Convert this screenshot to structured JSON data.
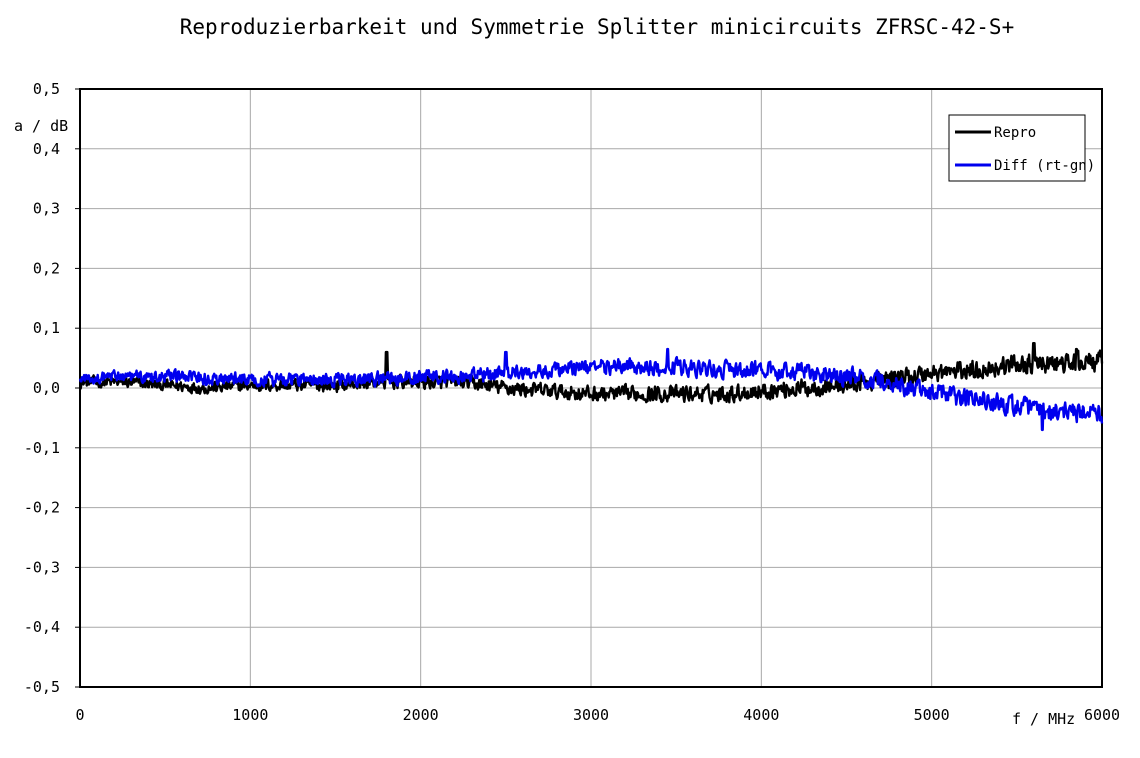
{
  "chart_data": {
    "type": "line",
    "title": "Reproduzierbarkeit und Symmetrie Splitter minicircuits ZFRSC-42-S+",
    "xlabel": "f / MHz",
    "ylabel": "a / dB",
    "xlim": [
      0,
      6000
    ],
    "ylim": [
      -0.5,
      0.5
    ],
    "x_ticks": [
      0,
      1000,
      2000,
      3000,
      4000,
      5000,
      6000
    ],
    "x_tick_labels": [
      "0",
      "1000",
      "2000",
      "3000",
      "4000",
      "5000",
      "6000"
    ],
    "y_ticks": [
      0.5,
      0.4,
      0.3,
      0.2,
      0.1,
      0.0,
      -0.1,
      -0.2,
      -0.3,
      -0.4,
      -0.5
    ],
    "y_tick_labels": [
      "0,5",
      "0,4",
      "0,3",
      "0,2",
      "0,1",
      "0,0",
      "-0,1",
      "-0,2",
      "-0,3",
      "-0,4",
      "-0,5"
    ],
    "grid": true,
    "legend_position": "top-right",
    "x": [
      0,
      250,
      500,
      750,
      1000,
      1250,
      1500,
      1750,
      2000,
      2250,
      2500,
      2750,
      3000,
      3250,
      3500,
      3750,
      4000,
      4250,
      4500,
      4750,
      5000,
      5250,
      5500,
      5750,
      6000
    ],
    "series": [
      {
        "name": "Repro",
        "color": "#000000",
        "values": [
          0.01,
          0.01,
          0.005,
          0.0,
          0.005,
          0.005,
          0.005,
          0.01,
          0.01,
          0.01,
          0.0,
          -0.005,
          -0.01,
          -0.01,
          -0.01,
          -0.01,
          -0.005,
          0.0,
          0.005,
          0.015,
          0.025,
          0.03,
          0.04,
          0.04,
          0.045
        ],
        "spikes": [
          [
            1800,
            0.06
          ],
          [
            5600,
            0.075
          ],
          [
            5850,
            0.065
          ]
        ]
      },
      {
        "name": "Diff (rt-gn)",
        "color": "#0000ee",
        "values": [
          0.015,
          0.02,
          0.02,
          0.015,
          0.015,
          0.015,
          0.015,
          0.015,
          0.02,
          0.02,
          0.025,
          0.03,
          0.035,
          0.035,
          0.035,
          0.03,
          0.03,
          0.025,
          0.02,
          0.01,
          -0.01,
          -0.02,
          -0.03,
          -0.04,
          -0.045
        ],
        "spikes": [
          [
            2500,
            0.06
          ],
          [
            3450,
            0.065
          ],
          [
            5650,
            -0.07
          ]
        ]
      }
    ]
  }
}
